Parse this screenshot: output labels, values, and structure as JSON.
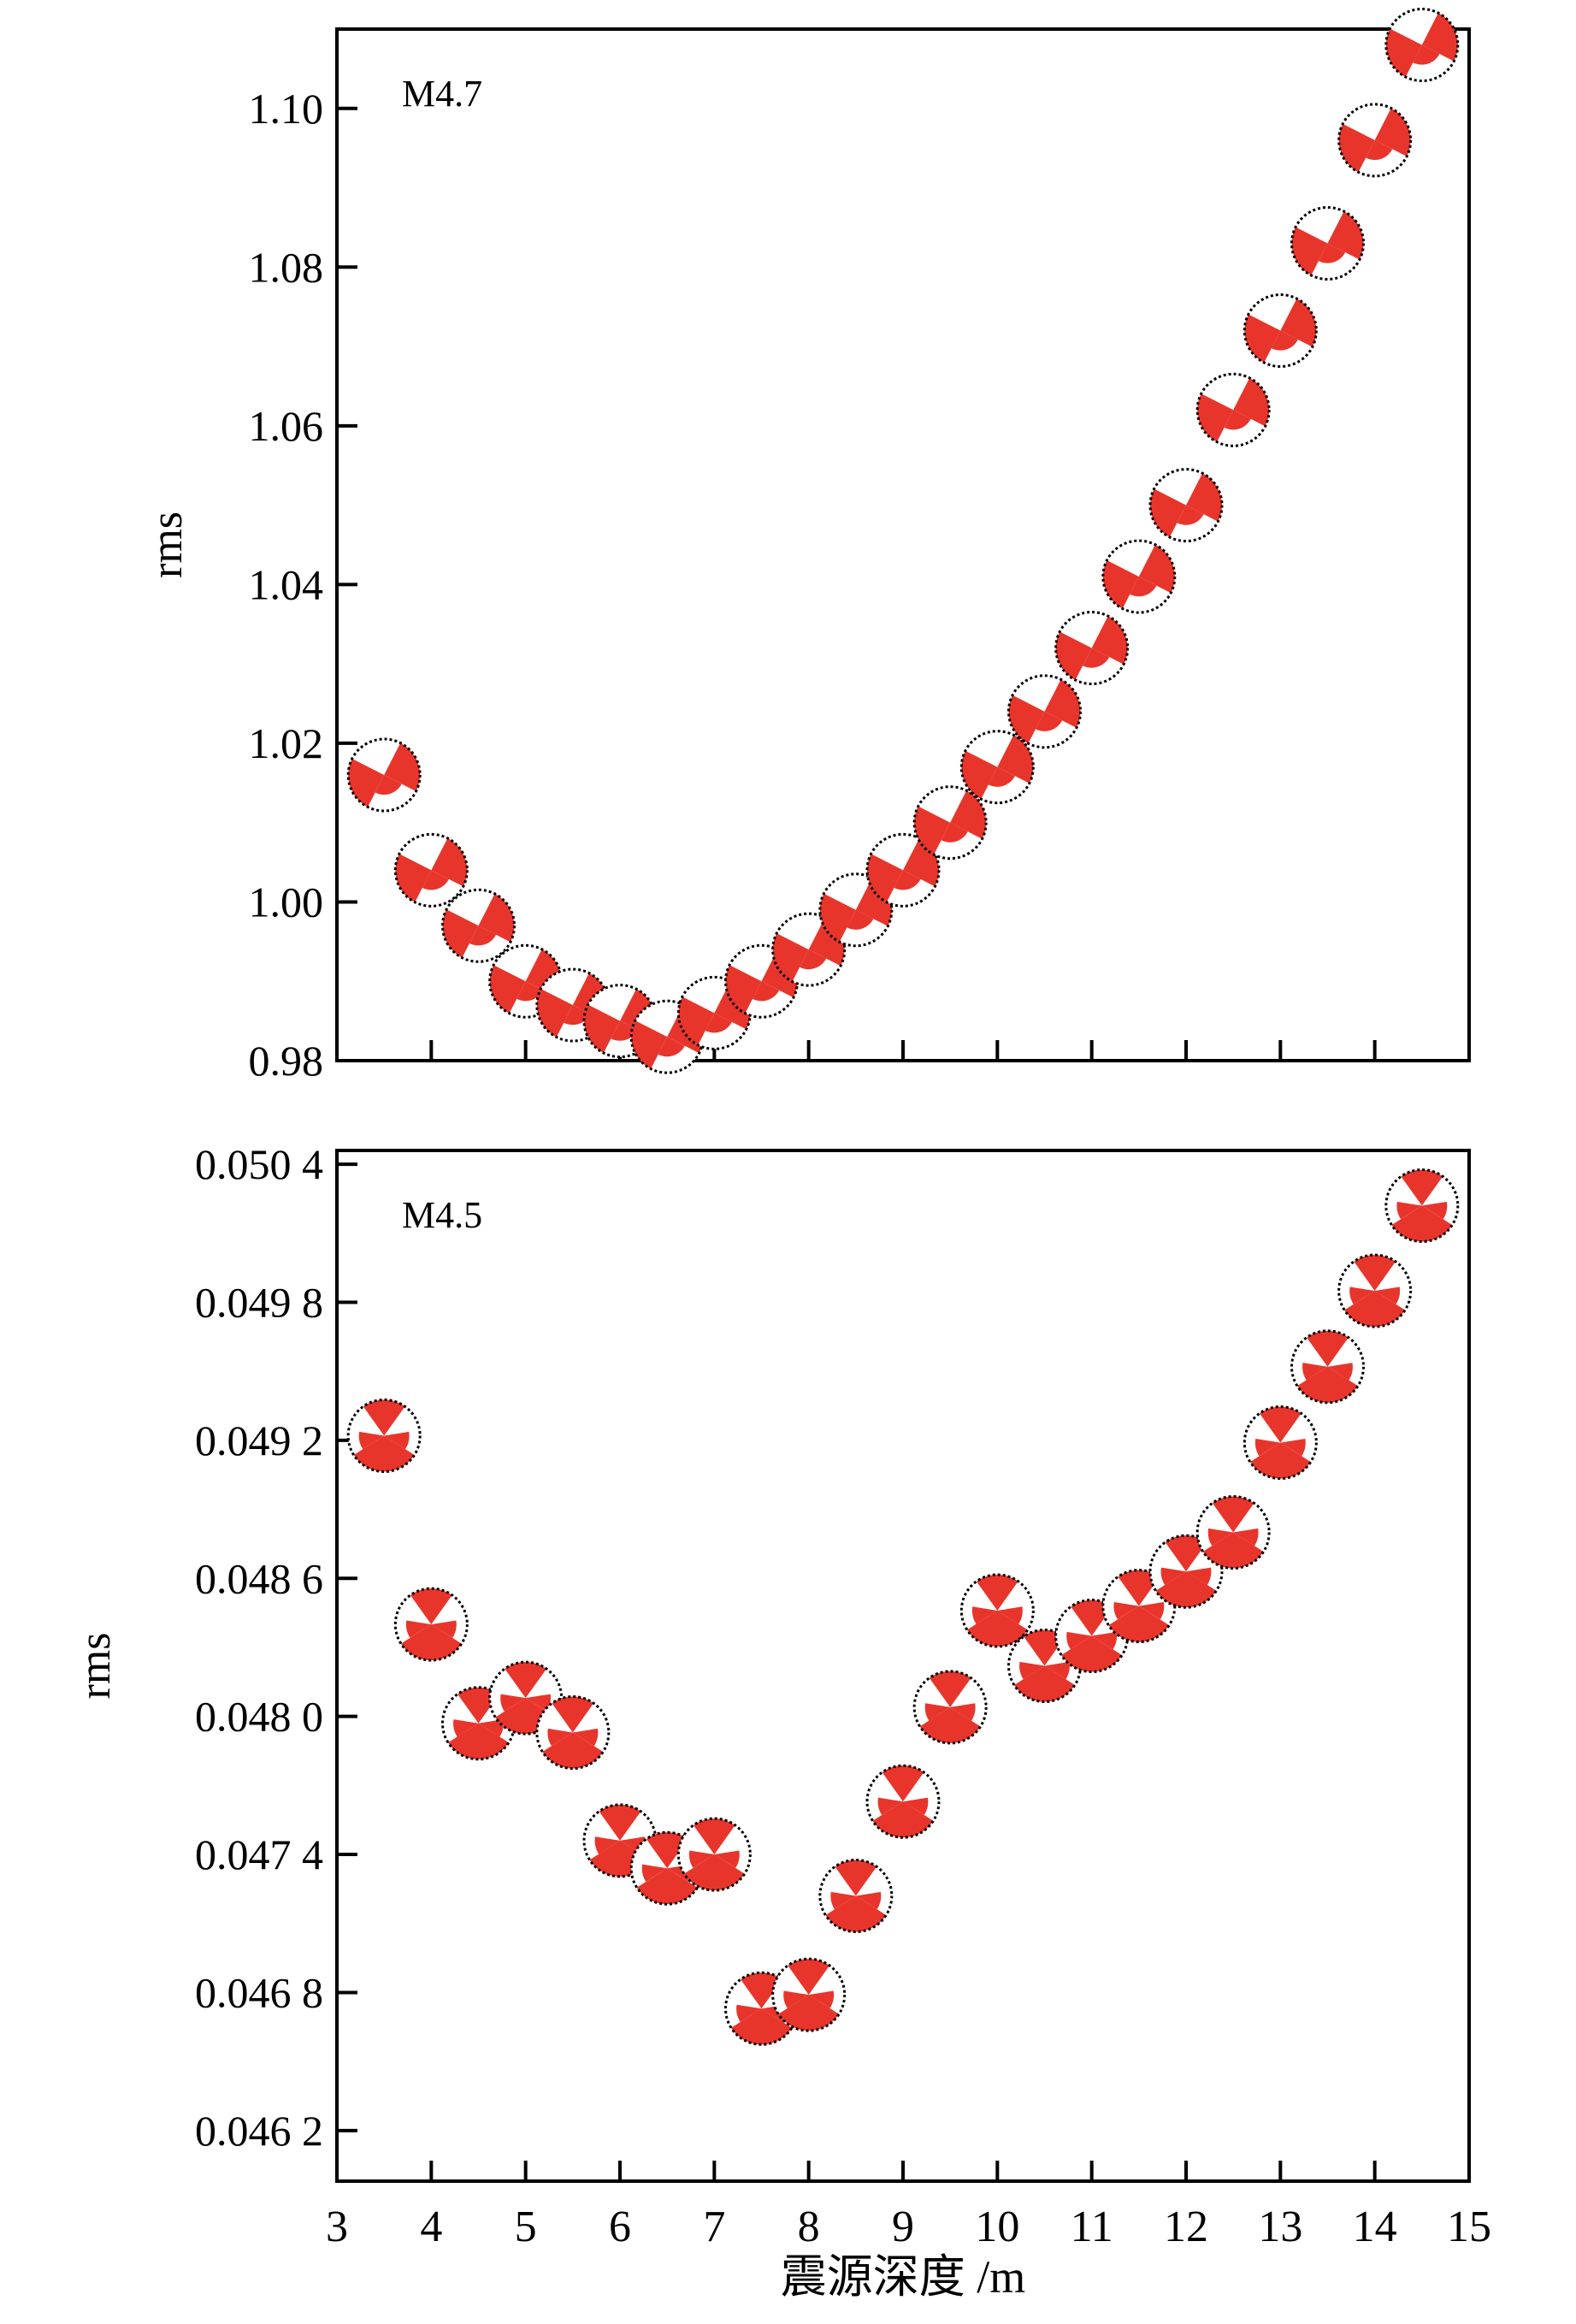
{
  "colors": {
    "beachball_fill": "#e8352c",
    "beachball_outline": "#000000",
    "axis": "#000000",
    "background": "#ffffff"
  },
  "icon": "beachball-focal-mechanism",
  "shared_xlabel": "震源深度 /m",
  "chart_data": [
    {
      "type": "scatter",
      "annotation": "M4.7",
      "xlabel": "",
      "ylabel": "rms",
      "xlim": [
        3,
        15
      ],
      "ylim": [
        0.98,
        1.11
      ],
      "x_ticks": [
        4,
        5,
        6,
        7,
        8,
        9,
        10,
        11,
        12,
        13,
        14
      ],
      "x_tick_labels": [],
      "y_ticks": [
        0.98,
        1.0,
        1.02,
        1.04,
        1.06,
        1.08,
        1.1
      ],
      "y_tick_labels": [
        "0.98",
        "1.00",
        "1.02",
        "1.04",
        "1.06",
        "1.08",
        "1.10"
      ],
      "marker": "beachball-strike-slip",
      "x": [
        3.5,
        4,
        4.5,
        5,
        5.5,
        6,
        6.5,
        7,
        7.5,
        8,
        8.5,
        9,
        9.5,
        10,
        10.5,
        11,
        11.5,
        12,
        12.5,
        13,
        13.5,
        14,
        14.5
      ],
      "y": [
        1.016,
        1.004,
        0.997,
        0.99,
        0.987,
        0.985,
        0.983,
        0.986,
        0.99,
        0.994,
        0.999,
        1.004,
        1.01,
        1.017,
        1.024,
        1.032,
        1.041,
        1.05,
        1.062,
        1.072,
        1.083,
        1.096,
        1.108
      ]
    },
    {
      "type": "scatter",
      "annotation": "M4.5",
      "xlabel": "震源深度 /m",
      "ylabel": "rms",
      "xlim": [
        3,
        15
      ],
      "ylim": [
        0.04598,
        0.05046
      ],
      "x_ticks": [
        3,
        4,
        5,
        6,
        7,
        8,
        9,
        10,
        11,
        12,
        13,
        14,
        15
      ],
      "x_tick_labels": [
        "3",
        "4",
        "5",
        "6",
        "7",
        "8",
        "9",
        "10",
        "11",
        "12",
        "13",
        "14",
        "15"
      ],
      "y_ticks": [
        0.0462,
        0.0468,
        0.0474,
        0.048,
        0.0486,
        0.0492,
        0.0498,
        0.0504
      ],
      "y_tick_labels": [
        "0.046 2",
        "0.046 8",
        "0.047 4",
        "0.048 0",
        "0.048 6",
        "0.049 2",
        "0.049 8",
        "0.050 4"
      ],
      "marker": "beachball-thrust",
      "x": [
        3.5,
        4,
        4.5,
        5,
        5.5,
        6,
        6.5,
        7,
        7.5,
        8,
        8.5,
        9,
        9.5,
        10,
        10.5,
        11,
        11.5,
        12,
        12.5,
        13,
        13.5,
        14,
        14.5
      ],
      "y": [
        0.04922,
        0.0484,
        0.04797,
        0.04808,
        0.04793,
        0.04746,
        0.04734,
        0.0474,
        0.04673,
        0.04679,
        0.04722,
        0.04763,
        0.04804,
        0.04846,
        0.04822,
        0.04835,
        0.04848,
        0.04863,
        0.0488,
        0.04919,
        0.04952,
        0.04985,
        0.05022
      ]
    }
  ]
}
